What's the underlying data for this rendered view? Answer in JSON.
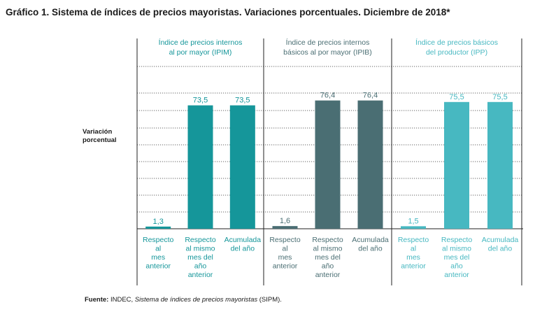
{
  "title": "Gráfico 1. Sistema de índices de precios mayoristas. Variaciones porcentuales. Diciembre de 2018*",
  "ylabel_line1": "Variación",
  "ylabel_line2": "porcentual",
  "source": {
    "label": "Fuente:",
    "org": "INDEC,",
    "publication": "Sistema de índices de precios mayoristas",
    "abbr": "(SIPM)."
  },
  "chart_data": {
    "type": "bar",
    "ylabel": "Variación porcentual",
    "ylim": [
      0,
      100
    ],
    "grid": true,
    "categories": [
      [
        "Respecto",
        "al",
        "mes",
        "anterior"
      ],
      [
        "Respecto",
        "al mismo",
        "mes del",
        "año",
        "anterior"
      ],
      [
        "Acumulada",
        "del año"
      ]
    ],
    "panels": [
      {
        "name_lines": [
          "Índice de precios internos",
          "al por mayor (IPIM)"
        ],
        "color": "#15969a",
        "values": [
          1.3,
          73.5,
          73.5
        ],
        "labels": [
          "1,3",
          "73,5",
          "73,5"
        ]
      },
      {
        "name_lines": [
          "Índice de precios internos",
          "básicos al por mayor (IPIB)"
        ],
        "color": "#4a6e73",
        "values": [
          1.6,
          76.4,
          76.4
        ],
        "labels": [
          "1,6",
          "76,4",
          "76,4"
        ]
      },
      {
        "name_lines": [
          "Índice de precios básicos",
          "del productor (IPP)"
        ],
        "color": "#47b8c1",
        "values": [
          1.5,
          75.5,
          75.5
        ],
        "labels": [
          "1,5",
          "75,5",
          "75,5"
        ]
      }
    ]
  }
}
